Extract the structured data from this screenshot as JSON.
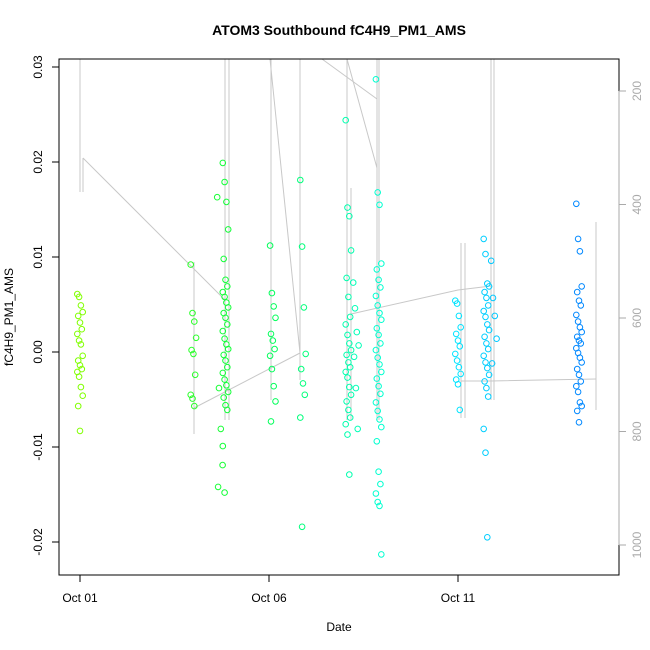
{
  "chart_data": {
    "type": "scatter",
    "title": "ATOM3 Southbound fC4H9_PM1_AMS",
    "xlabel": "Date",
    "ylabel": "fC4H9_PM1_AMS",
    "x_ticks": [
      "Oct 01",
      "Oct 06",
      "Oct 11"
    ],
    "x_tick_values": [
      1,
      6,
      11
    ],
    "xlim": [
      0.6,
      15.4
    ],
    "ylim": [
      -0.0235,
      0.031
    ],
    "y_ticks": [
      -0.02,
      -0.01,
      0.0,
      0.01,
      0.02,
      0.03
    ],
    "y_tick_labels": [
      "-0.02",
      "-0.01",
      "0.00",
      "0.01",
      "0.02",
      "0.03"
    ],
    "y2_ticks": [
      200,
      400,
      600,
      800,
      1000
    ],
    "y2_tick_labels": [
      "200",
      "400",
      "600",
      "800",
      "1000"
    ],
    "y2lim": [
      1055,
      145
    ],
    "y2_reversed": true,
    "marker": "open-circle",
    "color_gradient": [
      "#80ff00",
      "#00ff40",
      "#00ffff",
      "#0080ff"
    ],
    "line_color": "#c8c8c8",
    "groups": [
      {
        "x": 1.0,
        "values": [
          0.0061,
          0.0058,
          0.0049,
          0.0042,
          0.0038,
          0.0031,
          0.0024,
          0.0019,
          0.0012,
          0.0008,
          -0.0004,
          -0.0009,
          -0.0014,
          -0.0018,
          -0.0021,
          -0.0026,
          -0.0037,
          -0.0046,
          -0.0057,
          -0.0083
        ]
      },
      {
        "x": 4.0,
        "values": [
          0.0092,
          0.0041,
          0.0032,
          0.0015,
          0.0002,
          -0.0002,
          -0.0024,
          -0.0045,
          -0.0049,
          -0.0057
        ]
      },
      {
        "x": 4.7,
        "values": [
          0.0163,
          -0.0038,
          -0.0081,
          -0.0119,
          -0.0142
        ]
      },
      {
        "x": 4.85,
        "values": [
          0.0199,
          0.0179,
          0.0158,
          0.0129,
          0.0098,
          0.0076,
          0.0069,
          0.0063,
          0.0058,
          0.0052,
          0.0047,
          0.0041,
          0.0036,
          0.0029,
          0.0022,
          0.0014,
          0.0008,
          0.0003,
          -0.0003,
          -0.0009,
          -0.0016,
          -0.0022,
          -0.0029,
          -0.0035,
          -0.0042,
          -0.0048,
          -0.0056,
          -0.0061,
          -0.0099,
          -0.0148
        ]
      },
      {
        "x": 6.1,
        "values": [
          0.0112,
          0.0062,
          0.0048,
          0.0036,
          0.0019,
          0.0012,
          0.0003,
          -0.0004,
          -0.0018,
          -0.0036,
          -0.0052,
          -0.0073
        ]
      },
      {
        "x": 6.9,
        "values": [
          0.0181,
          0.0111,
          0.0047,
          -0.0002,
          -0.0018,
          -0.0033,
          -0.0045,
          -0.0069,
          -0.0184
        ]
      },
      {
        "x": 8.1,
        "values": [
          0.0244,
          0.0152,
          0.0143,
          0.0107,
          0.0078,
          0.0058,
          0.0037,
          0.0029,
          0.0018,
          0.0009,
          0.0002,
          -0.0003,
          -0.0011,
          -0.0016,
          -0.0021,
          -0.0027,
          -0.0037,
          -0.0045,
          -0.0052,
          -0.0061,
          -0.0069,
          -0.0076,
          -0.0087,
          -0.0129
        ]
      },
      {
        "x": 8.3,
        "values": [
          0.0073,
          0.0046,
          0.0021,
          0.0007,
          -0.0005,
          -0.0038,
          -0.0081
        ]
      },
      {
        "x": 8.9,
        "values": [
          0.0287,
          0.0168,
          0.0155,
          0.0093,
          0.0087,
          0.0076,
          0.0068,
          0.0059,
          0.0049,
          0.0041,
          0.0034,
          0.0025,
          0.0018,
          0.0009,
          0.0002,
          -0.0006,
          -0.0013,
          -0.0021,
          -0.0028,
          -0.0036,
          -0.0044,
          -0.0053,
          -0.0062,
          -0.0071,
          -0.0079,
          -0.0094,
          -0.0126,
          -0.0139,
          -0.0149,
          -0.0158,
          -0.0162,
          -0.0213
        ]
      },
      {
        "x": 11.0,
        "values": [
          0.0054,
          0.0051,
          0.0038,
          0.0026,
          0.0019,
          0.0012,
          0.0006,
          -0.0002,
          -0.0009,
          -0.0016,
          -0.0023,
          -0.0029,
          -0.0034,
          -0.0061
        ]
      },
      {
        "x": 11.75,
        "values": [
          0.0119,
          0.0103,
          0.0072,
          0.0069,
          0.0063,
          0.0057,
          0.0049,
          0.0043,
          0.0037,
          0.0029,
          0.0023,
          0.0016,
          0.0009,
          0.0003,
          -0.0004,
          -0.0011,
          -0.0017,
          -0.0024,
          -0.0031,
          -0.0038,
          -0.0047,
          -0.0081,
          -0.0106,
          -0.0195
        ]
      },
      {
        "x": 11.95,
        "values": [
          0.0096,
          0.0057,
          0.0038,
          0.0014,
          -0.0012
        ]
      },
      {
        "x": 14.2,
        "values": [
          0.0156,
          0.0119,
          0.0106,
          0.0069,
          0.0063,
          0.0054,
          0.0049,
          0.0039,
          0.0032,
          0.0026,
          0.0021,
          0.0016,
          0.0012,
          0.0009,
          0.0004,
          -0.0001,
          -0.0006,
          -0.0011,
          -0.0018,
          -0.0024,
          -0.0031,
          -0.0036,
          -0.0042,
          -0.0053,
          -0.0057,
          -0.0062,
          -0.0074
        ]
      }
    ]
  }
}
